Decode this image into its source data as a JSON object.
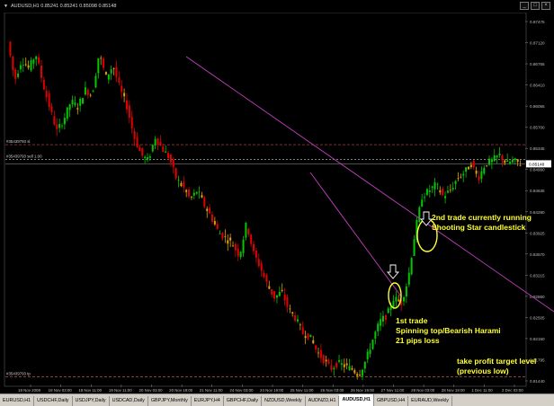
{
  "window": {
    "title": "AUDUSD,H1  0.85241 0.85241 0.85098 0.85148",
    "controls": [
      "_",
      "□",
      "×"
    ]
  },
  "price_axis": {
    "labels": [
      "0.87475",
      "0.87120",
      "0.86765",
      "0.86410",
      "0.86055",
      "0.85700",
      "0.85345",
      "0.84990",
      "0.84635",
      "0.84280",
      "0.83925",
      "0.83570",
      "0.83215",
      "0.82860",
      "0.82505",
      "0.82150",
      "0.81795",
      "0.81440"
    ],
    "current_price": "0.85148"
  },
  "time_axis": {
    "labels": [
      "18 Nov 2008",
      "18 Nov 03:00",
      "18 Nov 11:00",
      "19 Nov 11:00",
      "20 Nov 03:00",
      "20 Nov 19:00",
      "21 Nov 11:00",
      "24 Nov 03:00",
      "24 Nov 19:00",
      "25 Nov 11:00",
      "26 Nov 03:00",
      "26 Nov 19:00",
      "27 Nov 11:00",
      "28 Nov 03:00",
      "28 Nov 19:00",
      "1 Dec 11:00",
      "2 Dec 03:00"
    ]
  },
  "levels": [
    {
      "label": "#35439793 sl",
      "kind": "stop-loss"
    },
    {
      "label": "#35439793 sell 1.00",
      "kind": "entry"
    },
    {
      "label": "#35439793 tp",
      "kind": "take-profit"
    }
  ],
  "annotations": {
    "second_trade_line1": "2nd trade currently running",
    "second_trade_line2": "Shooting Star candlestick",
    "first_trade_line1": "1st trade",
    "first_trade_line2": "Spinning top/Bearish Harami",
    "first_trade_line3": "21 pips loss",
    "tp_line1": "take profit target level",
    "tp_line2": "(previous low)"
  },
  "tabs": [
    {
      "label": "EURUSD,H1",
      "active": false
    },
    {
      "label": "USDCHF,Daily",
      "active": false
    },
    {
      "label": "USDJPY,Daily",
      "active": false
    },
    {
      "label": "USDCAD,Daily",
      "active": false
    },
    {
      "label": "GBPJPY,Monthly",
      "active": false
    },
    {
      "label": "EURJPY,H4",
      "active": false
    },
    {
      "label": "GBPCHF,Daily",
      "active": false
    },
    {
      "label": "NZDUSD,Weekly",
      "active": false
    },
    {
      "label": "AUDNZD,H1",
      "active": false
    },
    {
      "label": "AUDUSD,H1",
      "active": true
    },
    {
      "label": "GBPUSD,H4",
      "active": false
    },
    {
      "label": "EURAUD,Weekly",
      "active": false
    }
  ],
  "colors": {
    "bull": "#00c800",
    "bear": "#e00000",
    "neutral": "#e0a000",
    "trendline": "#c040c0",
    "level_stop": "#c05050",
    "level_entry": "#a8a8a8",
    "level_tp": "#c05050",
    "annotation": "#ffff33"
  },
  "chart_data": {
    "type": "candlestick",
    "symbol": "AUDUSD",
    "timeframe": "H1",
    "ohlc_header": {
      "open": 0.85241,
      "high": 0.85241,
      "low": 0.85098,
      "close": 0.85148
    },
    "ylim": [
      0.8144,
      0.8766
    ],
    "last_price": 0.85148,
    "levels": {
      "stop_loss": 0.8547,
      "entry": 0.8522,
      "take_profit": 0.8157
    },
    "path": [
      [
        0,
        0.872
      ],
      [
        8,
        0.8655
      ],
      [
        16,
        0.869
      ],
      [
        24,
        0.8675
      ],
      [
        32,
        0.87
      ],
      [
        40,
        0.865
      ],
      [
        48,
        0.8608
      ],
      [
        56,
        0.857
      ],
      [
        64,
        0.859
      ],
      [
        72,
        0.862
      ],
      [
        80,
        0.861
      ],
      [
        88,
        0.864
      ],
      [
        96,
        0.863
      ],
      [
        104,
        0.87
      ],
      [
        112,
        0.866
      ],
      [
        120,
        0.868
      ],
      [
        128,
        0.864
      ],
      [
        136,
        0.861
      ],
      [
        144,
        0.856
      ],
      [
        152,
        0.853
      ],
      [
        160,
        0.852
      ],
      [
        168,
        0.856
      ],
      [
        176,
        0.854
      ],
      [
        184,
        0.8525
      ],
      [
        192,
        0.849
      ],
      [
        200,
        0.8475
      ],
      [
        208,
        0.8455
      ],
      [
        216,
        0.847
      ],
      [
        224,
        0.8445
      ],
      [
        232,
        0.8425
      ],
      [
        240,
        0.84
      ],
      [
        248,
        0.839
      ],
      [
        256,
        0.838
      ],
      [
        264,
        0.836
      ],
      [
        272,
        0.8415
      ],
      [
        280,
        0.8365
      ],
      [
        288,
        0.834
      ],
      [
        296,
        0.831
      ],
      [
        304,
        0.829
      ],
      [
        312,
        0.83
      ],
      [
        320,
        0.827
      ],
      [
        328,
        0.8255
      ],
      [
        336,
        0.823
      ],
      [
        344,
        0.8225
      ],
      [
        352,
        0.82
      ],
      [
        360,
        0.8185
      ],
      [
        368,
        0.817
      ],
      [
        376,
        0.818
      ],
      [
        384,
        0.8175
      ],
      [
        392,
        0.817
      ],
      [
        400,
        0.816
      ],
      [
        408,
        0.8185
      ],
      [
        416,
        0.822
      ],
      [
        424,
        0.825
      ],
      [
        432,
        0.826
      ],
      [
        440,
        0.829
      ],
      [
        448,
        0.828
      ],
      [
        456,
        0.832
      ],
      [
        464,
        0.84
      ],
      [
        472,
        0.846
      ],
      [
        480,
        0.847
      ],
      [
        488,
        0.848
      ],
      [
        496,
        0.846
      ],
      [
        504,
        0.847
      ],
      [
        512,
        0.849
      ],
      [
        520,
        0.85
      ],
      [
        528,
        0.8515
      ],
      [
        536,
        0.849
      ],
      [
        544,
        0.8515
      ],
      [
        552,
        0.852
      ],
      [
        560,
        0.853
      ],
      [
        568,
        0.8515
      ],
      [
        576,
        0.852
      ],
      [
        584,
        0.8515
      ]
    ]
  }
}
